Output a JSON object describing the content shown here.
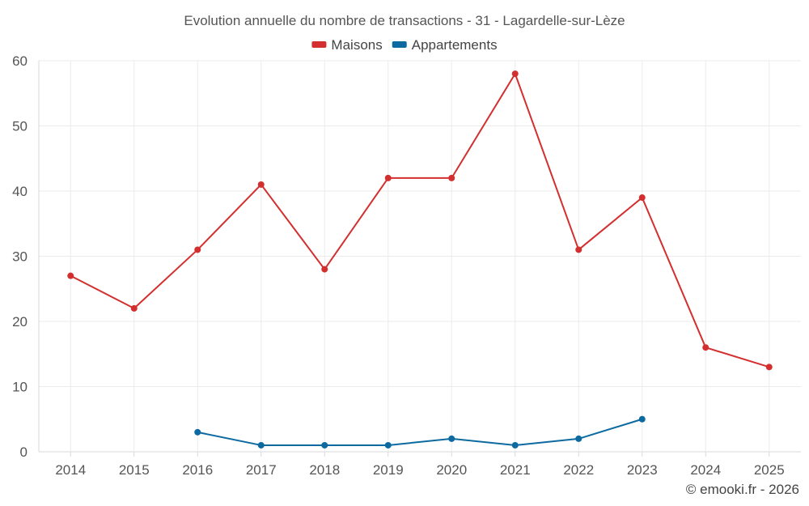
{
  "chart_data": {
    "type": "line",
    "title": "Evolution annuelle du nombre de transactions - 31 - Lagardelle-sur-Lèze",
    "categories": [
      "2014",
      "2015",
      "2016",
      "2017",
      "2018",
      "2019",
      "2020",
      "2021",
      "2022",
      "2023",
      "2024",
      "2025"
    ],
    "series": [
      {
        "name": "Maisons",
        "color": "#d32f2f",
        "values": [
          27,
          22,
          31,
          41,
          28,
          42,
          42,
          58,
          31,
          39,
          16,
          13
        ]
      },
      {
        "name": "Appartements",
        "color": "#0d6aa1",
        "values": [
          null,
          null,
          3,
          1,
          1,
          1,
          2,
          1,
          2,
          5,
          null,
          null
        ]
      }
    ],
    "yticks": [
      0,
      10,
      20,
      30,
      40,
      50,
      60
    ],
    "ylim": [
      0,
      60
    ],
    "xlabel": "",
    "ylabel": "",
    "legend": "top-center",
    "grid": true
  },
  "credit": "© emooki.fr - 2026"
}
